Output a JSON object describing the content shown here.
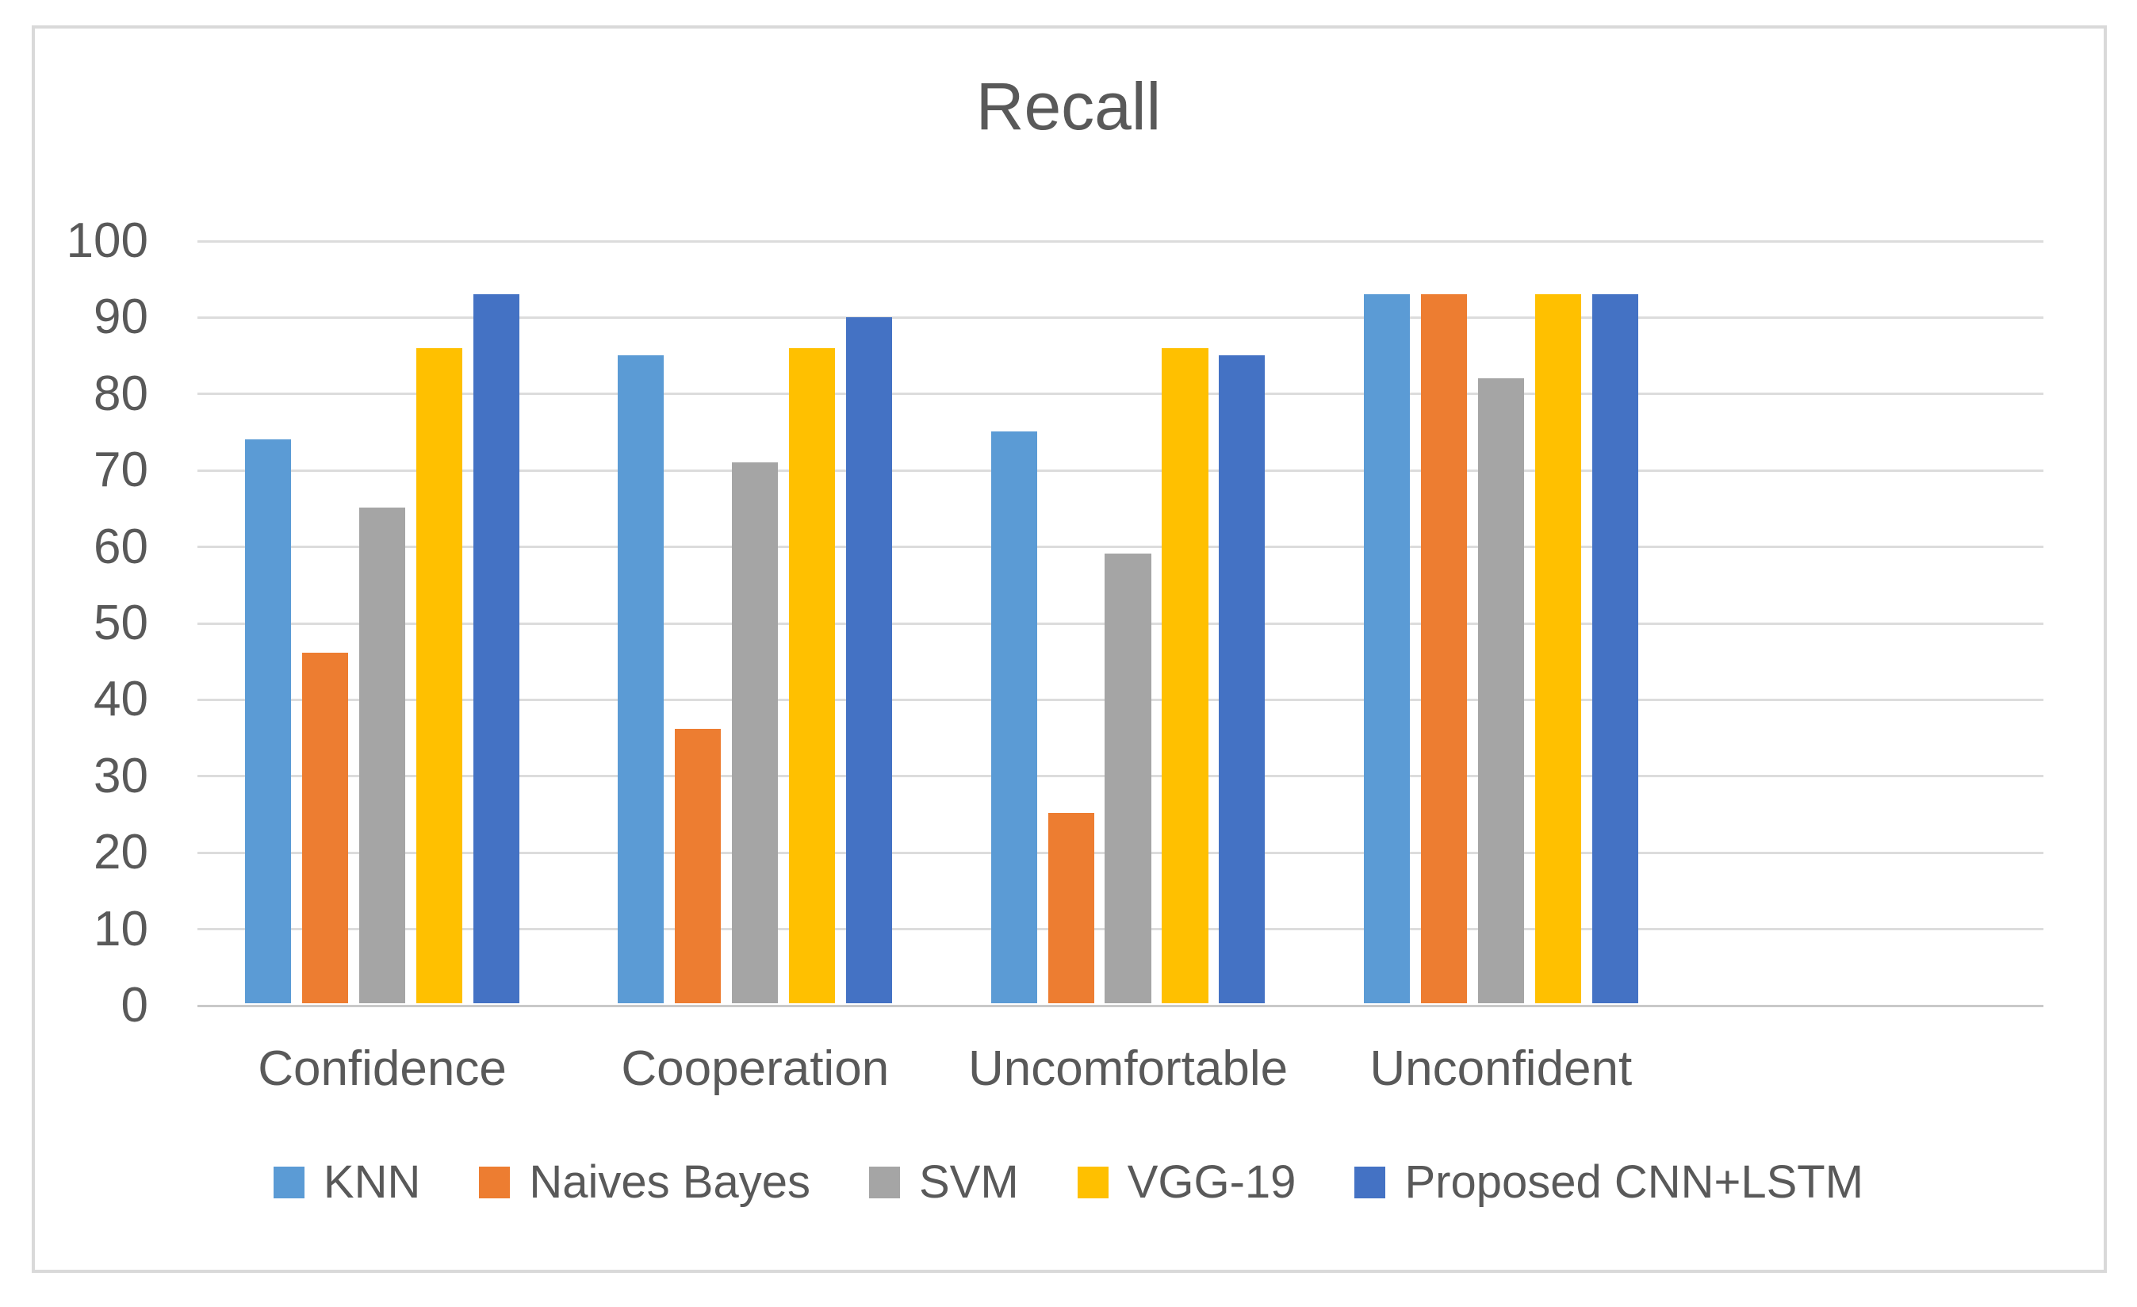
{
  "chart_data": {
    "type": "bar",
    "title": "Recall",
    "categories": [
      "Confidence",
      "Cooperation",
      "Uncomfortable",
      "Unconfident"
    ],
    "series": [
      {
        "name": "KNN",
        "color": "#5B9BD5",
        "values": [
          74,
          85,
          75,
          93
        ]
      },
      {
        "name": "Naives Bayes",
        "color": "#ED7D31",
        "values": [
          46,
          36,
          25,
          93
        ]
      },
      {
        "name": "SVM",
        "color": "#A5A5A5",
        "values": [
          65,
          71,
          59,
          82
        ]
      },
      {
        "name": "VGG-19",
        "color": "#FFC000",
        "values": [
          86,
          86,
          86,
          93
        ]
      },
      {
        "name": "Proposed CNN+LSTM",
        "color": "#4472C4",
        "values": [
          93,
          90,
          85,
          93
        ]
      }
    ],
    "ylim": [
      0,
      100
    ],
    "yticks": [
      0,
      10,
      20,
      30,
      40,
      50,
      60,
      70,
      80,
      90,
      100
    ],
    "xlabel": "",
    "ylabel": "",
    "grid": true,
    "legend_position": "bottom",
    "text_color": "#595959",
    "gridline_color": "#DCDCDC",
    "axis_line_color": "#C9C9C9",
    "frame_border_color": "#D9D9D9",
    "background_color": "#FFFFFF"
  }
}
